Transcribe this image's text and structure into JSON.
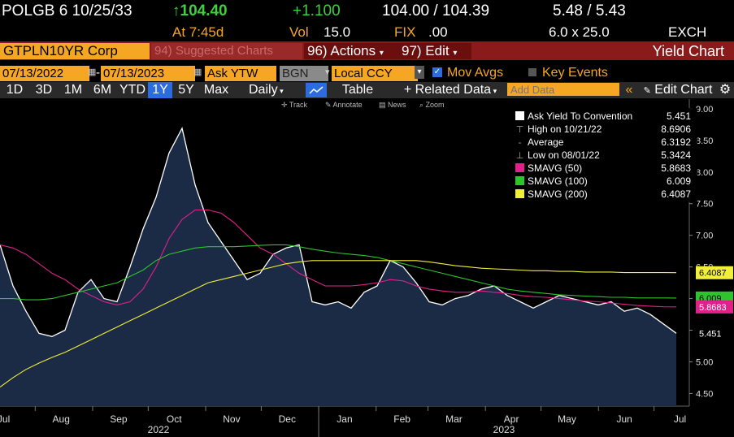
{
  "header": {
    "security": "POLGB 6 10/25/33",
    "last_price": "↑104.40",
    "change": "+1.100",
    "bid_ask": "104.00 / 104.39",
    "yield_bid_ask": "5.48 / 5.43",
    "time": "At 7:45d",
    "vol_label": "Vol",
    "vol_value": "15.0",
    "fix_label": "FIX",
    "fix_value": ".00",
    "size": "6.0 x 25.0",
    "exch": "EXCH"
  },
  "toolbar": {
    "ticker": "GTPLN10YR Corp",
    "suggested": "94) Suggested Charts",
    "actions": "96) Actions",
    "edit": "97) Edit",
    "title": "Yield Chart"
  },
  "controls": {
    "start_date": "07/13/2022",
    "end_date": "07/13/2023",
    "field": "Ask YTW",
    "source": "BGN",
    "currency": "Local CCY",
    "mov_avgs": "Mov Avgs",
    "key_events": "Key Events"
  },
  "periods": [
    "1D",
    "3D",
    "1M",
    "6M",
    "YTD",
    "1Y",
    "5Y",
    "Max"
  ],
  "active_period": "1Y",
  "frequency": "Daily",
  "table_btn": "Table",
  "related": "+ Related Data",
  "add_data_placeholder": "Add Data",
  "edit_chart": "Edit Chart",
  "tools": [
    "Track",
    "Annotate",
    "News",
    "Zoom"
  ],
  "colors": {
    "price": "#ffffff",
    "area": "#1b2a45",
    "sma50": "#e0218a",
    "sma100": "#2ec42e",
    "sma200": "#f2ef3a",
    "amber": "#f5a623"
  },
  "chart_data": {
    "type": "area",
    "title": "",
    "ylim": [
      4.3,
      9.05
    ],
    "y_ticks": [
      4.5,
      5.0,
      5.5,
      6.0,
      6.5,
      7.0,
      7.5,
      8.0,
      8.5,
      9.0
    ],
    "y_tick_labels": [
      "4.50",
      "5.00",
      "5.50",
      "6.00",
      "6.50",
      "7.00",
      "7.50",
      "8.00",
      "8.50",
      "9.00"
    ],
    "x_labels": [
      "Jul",
      "Aug",
      "Sep",
      "Oct",
      "Nov",
      "Dec",
      "Jan",
      "Feb",
      "Mar",
      "Apr",
      "May",
      "Jun",
      "Jul"
    ],
    "x_years": [
      "2022",
      "2023"
    ],
    "x_dates": [
      "2022-07-13",
      "2022-07-20",
      "2022-07-27",
      "2022-08-03",
      "2022-08-10",
      "2022-08-17",
      "2022-08-24",
      "2022-08-31",
      "2022-09-07",
      "2022-09-14",
      "2022-09-21",
      "2022-09-28",
      "2022-10-05",
      "2022-10-12",
      "2022-10-19",
      "2022-10-26",
      "2022-11-02",
      "2022-11-09",
      "2022-11-16",
      "2022-11-23",
      "2022-11-30",
      "2022-12-07",
      "2022-12-14",
      "2022-12-21",
      "2022-12-28",
      "2023-01-04",
      "2023-01-11",
      "2023-01-18",
      "2023-01-25",
      "2023-02-01",
      "2023-02-08",
      "2023-02-15",
      "2023-02-22",
      "2023-03-01",
      "2023-03-08",
      "2023-03-15",
      "2023-03-22",
      "2023-03-29",
      "2023-04-05",
      "2023-04-12",
      "2023-04-19",
      "2023-04-26",
      "2023-05-03",
      "2023-05-10",
      "2023-05-17",
      "2023-05-24",
      "2023-05-31",
      "2023-06-07",
      "2023-06-14",
      "2023-06-21",
      "2023-06-28",
      "2023-07-05",
      "2023-07-13"
    ],
    "series": [
      {
        "name": "Ask Yield To Convention",
        "color": "#ffffff",
        "values": [
          6.85,
          6.2,
          5.8,
          5.45,
          5.4,
          5.5,
          6.1,
          6.3,
          6.0,
          5.95,
          6.5,
          7.1,
          7.6,
          8.3,
          8.69,
          7.8,
          7.2,
          6.9,
          6.6,
          6.3,
          6.4,
          6.7,
          6.8,
          6.85,
          5.95,
          5.9,
          5.95,
          5.85,
          6.1,
          6.2,
          6.6,
          6.5,
          6.25,
          5.95,
          5.9,
          6.0,
          6.05,
          6.15,
          6.2,
          6.05,
          5.95,
          5.85,
          5.95,
          6.05,
          6.0,
          5.95,
          5.9,
          5.95,
          5.8,
          5.85,
          5.75,
          5.6,
          5.451
        ]
      },
      {
        "name": "SMAVG (50)",
        "color": "#e0218a",
        "values": [
          6.85,
          6.8,
          6.7,
          6.55,
          6.4,
          6.3,
          6.15,
          6.05,
          5.95,
          5.9,
          5.95,
          6.15,
          6.5,
          6.95,
          7.25,
          7.4,
          7.4,
          7.35,
          7.2,
          7.0,
          6.8,
          6.7,
          6.55,
          6.4,
          6.3,
          6.2,
          6.2,
          6.2,
          6.22,
          6.25,
          6.3,
          6.28,
          6.2,
          6.15,
          6.12,
          6.1,
          6.1,
          6.12,
          6.1,
          6.08,
          6.05,
          6.03,
          6.02,
          6.0,
          5.98,
          5.96,
          5.95,
          5.93,
          5.91,
          5.89,
          5.88,
          5.87,
          5.8683
        ]
      },
      {
        "name": "SMAVG (100)",
        "color": "#2ec42e",
        "values": [
          6.0,
          6.0,
          5.98,
          5.98,
          6.0,
          6.05,
          6.1,
          6.15,
          6.2,
          6.25,
          6.35,
          6.45,
          6.6,
          6.7,
          6.75,
          6.8,
          6.82,
          6.82,
          6.82,
          6.83,
          6.84,
          6.85,
          6.85,
          6.82,
          6.78,
          6.75,
          6.72,
          6.7,
          6.68,
          6.65,
          6.6,
          6.55,
          6.5,
          6.45,
          6.4,
          6.35,
          6.3,
          6.25,
          6.2,
          6.15,
          6.12,
          6.1,
          6.08,
          6.06,
          6.05,
          6.04,
          6.03,
          6.02,
          6.02,
          6.01,
          6.01,
          6.01,
          6.009
        ]
      },
      {
        "name": "SMAVG (200)",
        "color": "#f2ef3a",
        "values": [
          4.6,
          4.75,
          4.88,
          4.98,
          5.07,
          5.15,
          5.25,
          5.35,
          5.45,
          5.55,
          5.65,
          5.75,
          5.85,
          5.95,
          6.05,
          6.15,
          6.25,
          6.3,
          6.35,
          6.4,
          6.45,
          6.5,
          6.55,
          6.58,
          6.6,
          6.6,
          6.6,
          6.6,
          6.6,
          6.6,
          6.6,
          6.6,
          6.6,
          6.58,
          6.55,
          6.52,
          6.5,
          6.48,
          6.47,
          6.46,
          6.45,
          6.44,
          6.44,
          6.43,
          6.43,
          6.42,
          6.42,
          6.42,
          6.41,
          6.41,
          6.41,
          6.41,
          6.4087
        ]
      }
    ],
    "legend": [
      {
        "label": "Ask Yield To Convention",
        "value": "5.451",
        "color": "#ffffff",
        "marker": "box"
      },
      {
        "label": "High on 10/21/22",
        "value": "8.6906",
        "color": "#cccccc",
        "marker": "high"
      },
      {
        "label": "Average",
        "value": "6.3192",
        "color": "#cccccc",
        "marker": "avg"
      },
      {
        "label": "Low on 08/01/22",
        "value": "5.3424",
        "color": "#cccccc",
        "marker": "low"
      },
      {
        "label": "SMAVG (50)",
        "value": "5.8683",
        "color": "#e0218a",
        "marker": "box"
      },
      {
        "label": "SMAVG (100)",
        "value": "6.009",
        "color": "#2ec42e",
        "marker": "box"
      },
      {
        "label": "SMAVG (200)",
        "value": "6.4087",
        "color": "#f2ef3a",
        "marker": "box"
      }
    ],
    "last_value_tags": [
      {
        "label": "6.4087",
        "value": 6.4087,
        "bg": "#f2ef3a",
        "fg": "#000"
      },
      {
        "label": "6.009",
        "value": 6.009,
        "bg": "#2ec42e",
        "fg": "#000"
      },
      {
        "label": "5.8683",
        "value": 5.8683,
        "bg": "#e0218a",
        "fg": "#fff"
      },
      {
        "label": "5.451",
        "value": 5.451,
        "bg": "#000",
        "fg": "#fff"
      }
    ],
    "legend_position": "top-right",
    "grid": false
  }
}
